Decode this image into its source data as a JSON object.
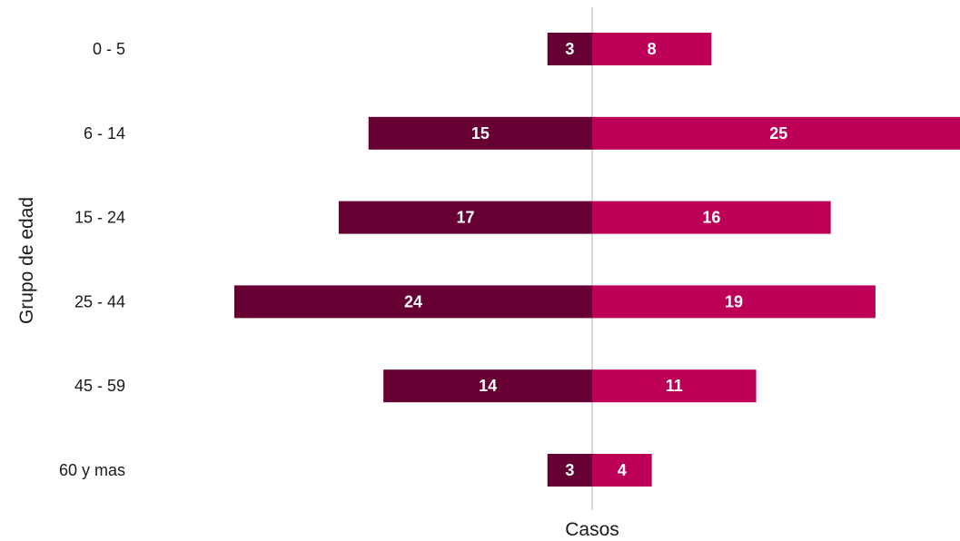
{
  "chart_data": {
    "type": "bar",
    "orientation": "horizontal-diverging",
    "categories": [
      "0 - 5",
      "6 - 14",
      "15 - 24",
      "25 - 44",
      "45 - 59",
      "60 y mas"
    ],
    "series": [
      {
        "values": [
          3,
          15,
          17,
          24,
          14,
          3
        ],
        "color": "#660033",
        "direction": "left"
      },
      {
        "values": [
          8,
          25,
          16,
          19,
          11,
          4
        ],
        "color": "#BC0058",
        "direction": "right"
      }
    ],
    "xlabel": "Casos",
    "ylabel": "Grupo de edad",
    "xlim": [
      -24,
      25
    ],
    "grid": false,
    "center_line_color": "#cccccc"
  }
}
